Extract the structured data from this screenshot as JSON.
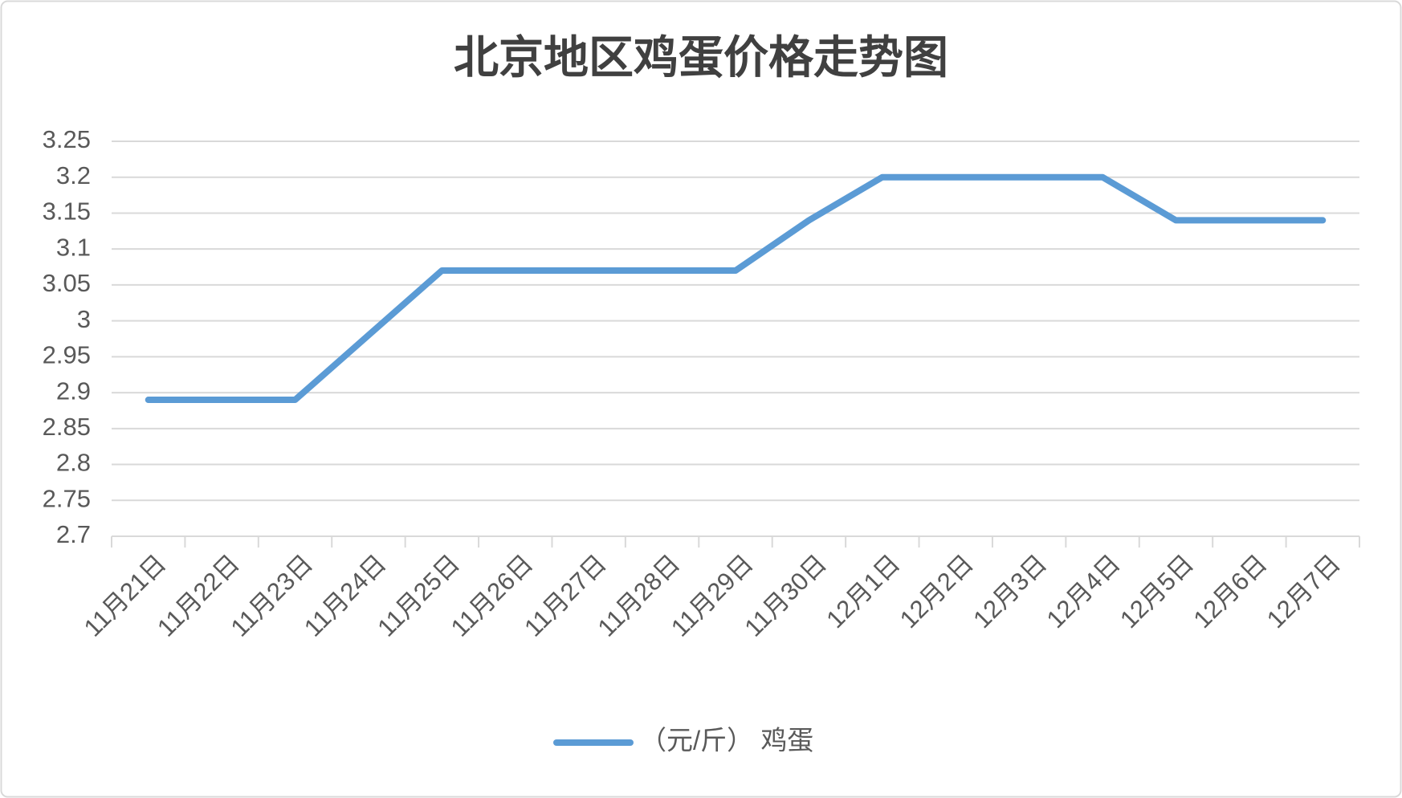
{
  "chart_data": {
    "type": "line",
    "title": "北京地区鸡蛋价格走势图",
    "categories": [
      "11月21日",
      "11月22日",
      "11月23日",
      "11月24日",
      "11月25日",
      "11月26日",
      "11月27日",
      "11月28日",
      "11月29日",
      "11月30日",
      "12月1日",
      "12月2日",
      "12月3日",
      "12月4日",
      "12月5日",
      "12月6日",
      "12月7日"
    ],
    "series": [
      {
        "name": "（元/斤） 鸡蛋",
        "color": "#5b9bd5",
        "values": [
          2.89,
          2.89,
          2.89,
          2.98,
          3.07,
          3.07,
          3.07,
          3.07,
          3.07,
          3.14,
          3.2,
          3.2,
          3.2,
          3.2,
          3.14,
          3.14,
          3.14
        ]
      }
    ],
    "ylim": [
      2.7,
      3.25
    ],
    "yticks": [
      2.7,
      2.75,
      2.8,
      2.85,
      2.9,
      2.95,
      3,
      3.05,
      3.1,
      3.15,
      3.2,
      3.25
    ],
    "grid": true,
    "legend": "bottom"
  }
}
